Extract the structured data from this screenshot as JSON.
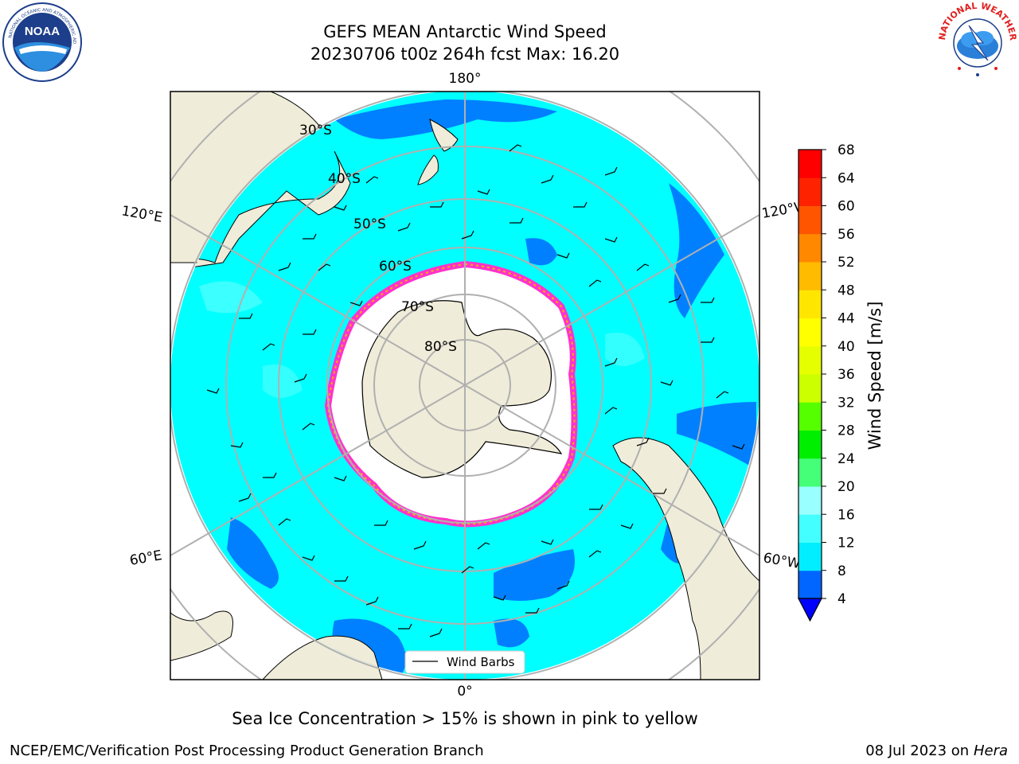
{
  "title": {
    "line1": "GEFS MEAN Antarctic Wind Speed",
    "line2": "20230706 t00z 264h fcst   Max: 16.20"
  },
  "logos": {
    "left": "noaa-logo",
    "right": "nws-logo",
    "left_text": "NOAA",
    "right_ring_text": "NATIONAL WEATHER SERVICE"
  },
  "map": {
    "projection": "south-polar-stereographic",
    "lon_labels": {
      "top": "180°",
      "bottom": "0°",
      "upper_left": "120°E",
      "upper_right": "120°W",
      "lower_left": "60°E",
      "lower_right": "60°W"
    },
    "lat_labels": [
      "30°S",
      "40°S",
      "50°S",
      "60°S",
      "70°S",
      "80°S"
    ],
    "legend_label": "Wind Barbs",
    "colors": {
      "land": "#efecd9",
      "ocean_bg": "#00ffff",
      "low_wind": "#0080ff",
      "ice_edge": "#ff33cc",
      "ice_inner": "#ffb000",
      "grid": "#b0b0b0"
    }
  },
  "colorbar": {
    "label": "Wind Speed [m/s]",
    "ticks": [
      "4",
      "8",
      "12",
      "16",
      "20",
      "24",
      "28",
      "32",
      "36",
      "40",
      "44",
      "48",
      "52",
      "56",
      "60",
      "64",
      "68"
    ],
    "colors": [
      "#0000ff",
      "#0066ff",
      "#00eeff",
      "#44ffff",
      "#99ffff",
      "#44ff77",
      "#00ee00",
      "#55ff00",
      "#ccff00",
      "#e6ff00",
      "#ffff00",
      "#ffe600",
      "#ffbb00",
      "#ff8800",
      "#ff5500",
      "#ff2200",
      "#ff0000"
    ]
  },
  "note": "Sea Ice Concentration > 15% is shown in pink to yellow",
  "footer": {
    "left": "NCEP/EMC/Verification Post Processing Product Generation Branch",
    "date": "08 Jul 2023 on ",
    "host": "Hera"
  }
}
